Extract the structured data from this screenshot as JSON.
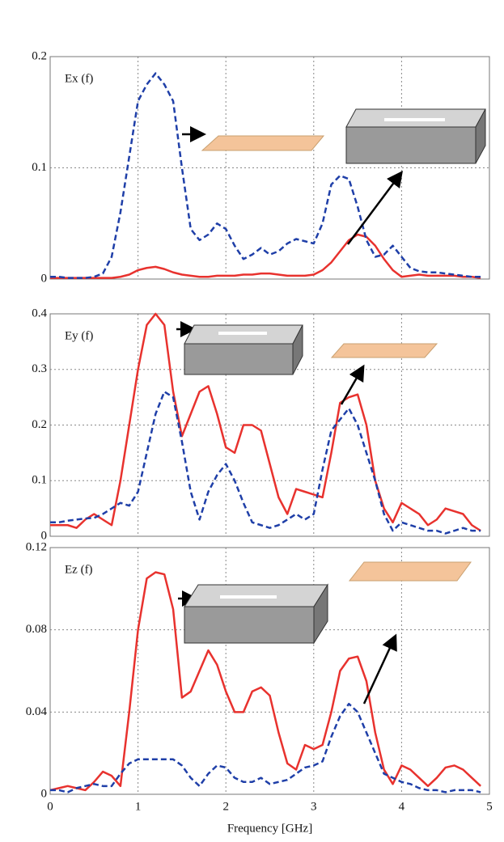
{
  "chart_data": [
    {
      "type": "line",
      "annotation": "Ex (f)",
      "x": [
        0,
        0.1,
        0.2,
        0.3,
        0.4,
        0.5,
        0.6,
        0.7,
        0.8,
        0.9,
        1,
        1.1,
        1.2,
        1.3,
        1.4,
        1.5,
        1.6,
        1.7,
        1.8,
        1.9,
        2,
        2.1,
        2.2,
        2.3,
        2.4,
        2.5,
        2.6,
        2.7,
        2.8,
        2.9,
        3,
        3.1,
        3.2,
        3.3,
        3.4,
        3.5,
        3.6,
        3.7,
        3.8,
        3.9,
        4,
        4.1,
        4.2,
        4.3,
        4.4,
        4.5,
        4.6,
        4.7,
        4.8,
        4.9
      ],
      "series": [
        {
          "color": "#e8322e",
          "line_style": "solid",
          "values": [
            0.001,
            0.001,
            0.001,
            0.001,
            0.001,
            0.001,
            0.001,
            0.001,
            0.002,
            0.004,
            0.008,
            0.01,
            0.011,
            0.009,
            0.006,
            0.004,
            0.003,
            0.002,
            0.002,
            0.003,
            0.003,
            0.003,
            0.004,
            0.004,
            0.005,
            0.005,
            0.004,
            0.003,
            0.003,
            0.003,
            0.004,
            0.008,
            0.015,
            0.025,
            0.035,
            0.04,
            0.038,
            0.03,
            0.018,
            0.008,
            0.002,
            0.003,
            0.004,
            0.003,
            0.003,
            0.003,
            0.003,
            0.002,
            0.002,
            0.001
          ]
        },
        {
          "color": "#1f3fa8",
          "line_style": "dashed",
          "values": [
            0.002,
            0.002,
            0.001,
            0.001,
            0.001,
            0.002,
            0.005,
            0.02,
            0.06,
            0.11,
            0.16,
            0.175,
            0.185,
            0.175,
            0.16,
            0.1,
            0.045,
            0.035,
            0.04,
            0.05,
            0.045,
            0.03,
            0.018,
            0.022,
            0.028,
            0.022,
            0.025,
            0.032,
            0.036,
            0.034,
            0.032,
            0.05,
            0.085,
            0.093,
            0.09,
            0.065,
            0.035,
            0.02,
            0.022,
            0.03,
            0.02,
            0.01,
            0.007,
            0.006,
            0.006,
            0.005,
            0.004,
            0.003,
            0.002,
            0.002
          ]
        }
      ],
      "xlim": [
        0,
        5
      ],
      "xticks": [
        0,
        1,
        2,
        3,
        4,
        5
      ],
      "ylim": [
        0,
        0.2
      ],
      "yticks": [
        0,
        0.1,
        0.2
      ],
      "grid": true
    },
    {
      "type": "line",
      "annotation": "Ey (f)",
      "x": [
        0,
        0.1,
        0.2,
        0.3,
        0.4,
        0.5,
        0.6,
        0.7,
        0.8,
        0.9,
        1,
        1.1,
        1.2,
        1.3,
        1.4,
        1.5,
        1.6,
        1.7,
        1.8,
        1.9,
        2,
        2.1,
        2.2,
        2.3,
        2.4,
        2.5,
        2.6,
        2.7,
        2.8,
        2.9,
        3,
        3.1,
        3.2,
        3.3,
        3.4,
        3.5,
        3.6,
        3.7,
        3.8,
        3.9,
        4,
        4.1,
        4.2,
        4.3,
        4.4,
        4.5,
        4.6,
        4.7,
        4.8,
        4.9
      ],
      "series": [
        {
          "color": "#e8322e",
          "line_style": "solid",
          "values": [
            0.02,
            0.02,
            0.02,
            0.015,
            0.03,
            0.04,
            0.03,
            0.02,
            0.1,
            0.2,
            0.3,
            0.38,
            0.4,
            0.38,
            0.26,
            0.18,
            0.22,
            0.26,
            0.27,
            0.22,
            0.16,
            0.15,
            0.2,
            0.2,
            0.19,
            0.13,
            0.07,
            0.04,
            0.085,
            0.08,
            0.075,
            0.07,
            0.15,
            0.24,
            0.25,
            0.255,
            0.2,
            0.1,
            0.05,
            0.025,
            0.06,
            0.05,
            0.04,
            0.02,
            0.03,
            0.05,
            0.045,
            0.04,
            0.02,
            0.01
          ]
        },
        {
          "color": "#1f3fa8",
          "line_style": "dashed",
          "values": [
            0.025,
            0.025,
            0.028,
            0.03,
            0.032,
            0.033,
            0.04,
            0.05,
            0.06,
            0.055,
            0.08,
            0.15,
            0.22,
            0.26,
            0.25,
            0.17,
            0.08,
            0.03,
            0.08,
            0.11,
            0.13,
            0.1,
            0.06,
            0.025,
            0.02,
            0.015,
            0.02,
            0.03,
            0.04,
            0.03,
            0.04,
            0.12,
            0.19,
            0.21,
            0.23,
            0.2,
            0.15,
            0.1,
            0.04,
            0.01,
            0.025,
            0.02,
            0.015,
            0.01,
            0.01,
            0.005,
            0.01,
            0.015,
            0.01,
            0.01
          ]
        }
      ],
      "xlim": [
        0,
        5
      ],
      "xticks": [
        0,
        1,
        2,
        3,
        4,
        5
      ],
      "ylim": [
        0,
        0.4
      ],
      "yticks": [
        0,
        0.1,
        0.2,
        0.3,
        0.4
      ],
      "grid": true
    },
    {
      "type": "line",
      "annotation": "Ez (f)",
      "xlabel": "Frequency [GHz]",
      "x": [
        0,
        0.1,
        0.2,
        0.3,
        0.4,
        0.5,
        0.6,
        0.7,
        0.8,
        0.9,
        1,
        1.1,
        1.2,
        1.3,
        1.4,
        1.5,
        1.6,
        1.7,
        1.8,
        1.9,
        2,
        2.1,
        2.2,
        2.3,
        2.4,
        2.5,
        2.6,
        2.7,
        2.8,
        2.9,
        3,
        3.1,
        3.2,
        3.3,
        3.4,
        3.5,
        3.6,
        3.7,
        3.8,
        3.9,
        4,
        4.1,
        4.2,
        4.3,
        4.4,
        4.5,
        4.6,
        4.7,
        4.8,
        4.9
      ],
      "series": [
        {
          "color": "#e8322e",
          "line_style": "solid",
          "values": [
            0.002,
            0.003,
            0.004,
            0.003,
            0.002,
            0.006,
            0.011,
            0.009,
            0.004,
            0.04,
            0.08,
            0.105,
            0.108,
            0.107,
            0.09,
            0.047,
            0.05,
            0.06,
            0.07,
            0.063,
            0.05,
            0.04,
            0.04,
            0.05,
            0.052,
            0.048,
            0.03,
            0.015,
            0.012,
            0.024,
            0.022,
            0.024,
            0.04,
            0.06,
            0.066,
            0.067,
            0.055,
            0.03,
            0.012,
            0.005,
            0.014,
            0.012,
            0.008,
            0.004,
            0.008,
            0.013,
            0.014,
            0.012,
            0.008,
            0.004
          ]
        },
        {
          "color": "#1f3fa8",
          "line_style": "dashed",
          "values": [
            0.002,
            0.002,
            0.001,
            0.003,
            0.004,
            0.005,
            0.004,
            0.004,
            0.01,
            0.015,
            0.017,
            0.017,
            0.017,
            0.017,
            0.017,
            0.014,
            0.008,
            0.004,
            0.01,
            0.014,
            0.013,
            0.008,
            0.006,
            0.006,
            0.008,
            0.005,
            0.006,
            0.007,
            0.01,
            0.013,
            0.014,
            0.016,
            0.028,
            0.038,
            0.044,
            0.04,
            0.03,
            0.02,
            0.01,
            0.008,
            0.006,
            0.005,
            0.003,
            0.002,
            0.002,
            0.001,
            0.002,
            0.002,
            0.002,
            0.001
          ]
        }
      ],
      "xlim": [
        0,
        5
      ],
      "xticks": [
        0,
        1,
        2,
        3,
        4,
        5
      ],
      "ylim": [
        0,
        0.12
      ],
      "yticks": [
        0,
        0.04,
        0.08,
        0.12
      ],
      "grid": true
    }
  ]
}
